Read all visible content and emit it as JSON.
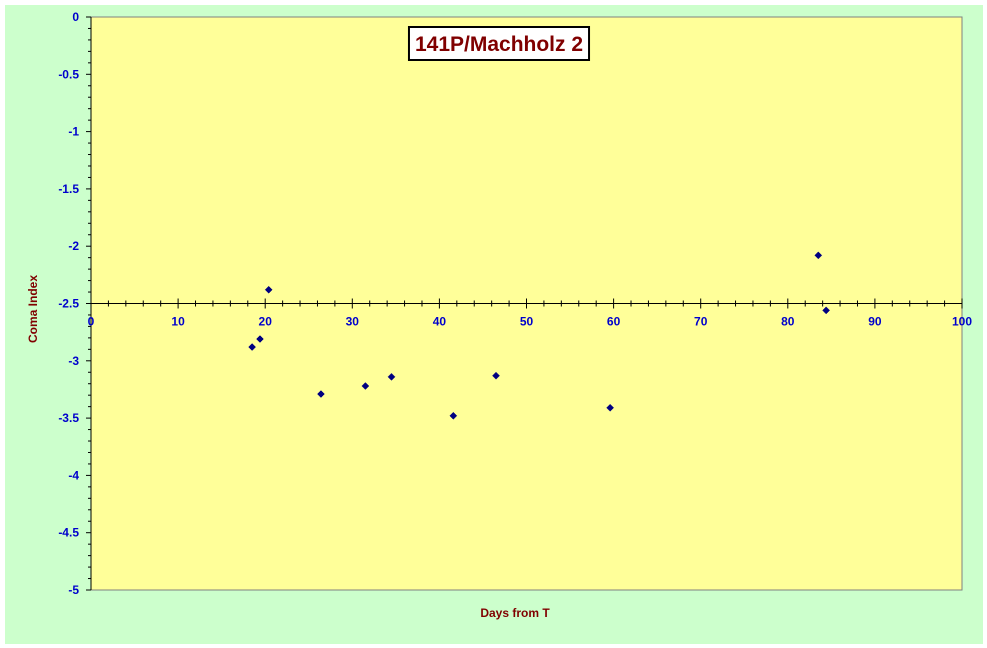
{
  "colors": {
    "chart_background": "#ccffcc",
    "plot_background": "#ffff99",
    "marker": "#000080",
    "axis_title": "#800000",
    "tick_label": "#0000cc"
  },
  "chart_data": {
    "type": "scatter",
    "title": "141P/Machholz 2",
    "xlabel": "Days from T",
    "ylabel": "Coma Index",
    "xlim": [
      0,
      100
    ],
    "ylim": [
      -5,
      0
    ],
    "x_axis_crosses_y_at": -2.5,
    "x_ticks": [
      0,
      10,
      20,
      30,
      40,
      50,
      60,
      70,
      80,
      90,
      100
    ],
    "y_ticks": [
      0,
      -0.5,
      -1,
      -1.5,
      -2,
      -2.5,
      -3,
      -3.5,
      -4,
      -4.5,
      -5
    ],
    "grid": false,
    "legend": "none",
    "marker": "diamond",
    "series": [
      {
        "points": [
          {
            "x": 18.5,
            "y": -2.88
          },
          {
            "x": 19.4,
            "y": -2.81
          },
          {
            "x": 20.4,
            "y": -2.38
          },
          {
            "x": 26.4,
            "y": -3.29
          },
          {
            "x": 31.5,
            "y": -3.22
          },
          {
            "x": 34.5,
            "y": -3.14
          },
          {
            "x": 41.6,
            "y": -3.48
          },
          {
            "x": 46.5,
            "y": -3.13
          },
          {
            "x": 59.6,
            "y": -3.41
          },
          {
            "x": 83.5,
            "y": -2.08
          },
          {
            "x": 84.4,
            "y": -2.56
          }
        ]
      }
    ]
  }
}
